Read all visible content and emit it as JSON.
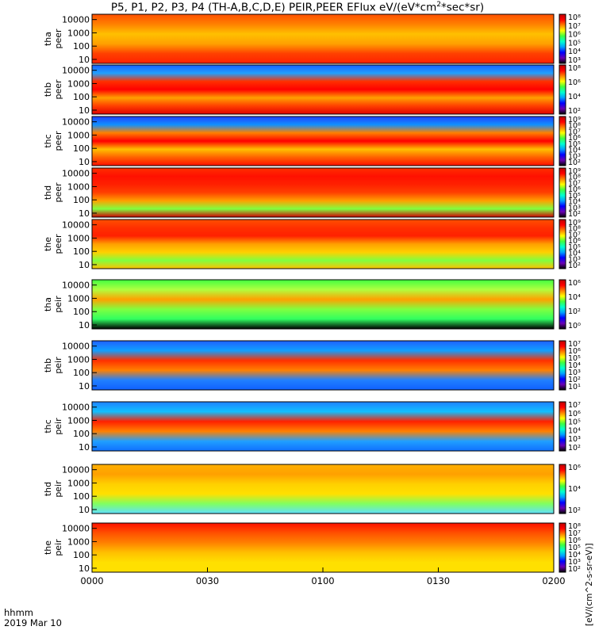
{
  "title": "P5, P1, P2, P3, P4 (TH-A,B,C,D,E) PEIR,PEER EFlux eV/(eV*cm^2*sec*sr)",
  "units_label": "[eV/(cm^2-s-sr-eV)]",
  "footer": {
    "label": "hhmm",
    "date": "2019 Mar 10"
  },
  "chart_data": {
    "type": "heatmap",
    "x_ticks": [
      "0000",
      "0030",
      "0100",
      "0130",
      "0200"
    ],
    "x_range_minutes": [
      0,
      120
    ],
    "y_scale": "log",
    "y_ticks": [
      "10",
      "100",
      "1000",
      "10000"
    ],
    "colormap": [
      "#000000",
      "#6a00b4",
      "#0000ff",
      "#00a0ff",
      "#00ffd0",
      "#40ff40",
      "#ffff00",
      "#ff8000",
      "#ff0000",
      "#c00000"
    ],
    "panels": [
      {
        "probe": "tha",
        "species": "peer",
        "ylabel": [
          "tha",
          "peer"
        ],
        "cbar_ticks": [
          "10⁸",
          "10⁷",
          "10⁶",
          "10⁵",
          "10⁴",
          "10³"
        ]
      },
      {
        "probe": "thb",
        "species": "peer",
        "ylabel": [
          "thb",
          "peer"
        ],
        "cbar_ticks": [
          "10⁸",
          "10⁶",
          "10⁴",
          "10²"
        ]
      },
      {
        "probe": "thc",
        "species": "peer",
        "ylabel": [
          "thc",
          "peer"
        ],
        "cbar_ticks": [
          "10⁹",
          "10⁸",
          "10⁷",
          "10⁶",
          "10⁵",
          "10⁴",
          "10³",
          "10²"
        ]
      },
      {
        "probe": "thd",
        "species": "peer",
        "ylabel": [
          "thd",
          "peer"
        ],
        "cbar_ticks": [
          "10⁹",
          "10⁸",
          "10⁷",
          "10⁶",
          "10⁵",
          "10⁴",
          "10³",
          "10²"
        ]
      },
      {
        "probe": "the",
        "species": "peer",
        "ylabel": [
          "the",
          "peer"
        ],
        "cbar_ticks": [
          "10⁹",
          "10⁸",
          "10⁷",
          "10⁶",
          "10⁵",
          "10⁴",
          "10³",
          "10²"
        ]
      },
      {
        "probe": "tha",
        "species": "peir",
        "ylabel": [
          "tha",
          "peir"
        ],
        "cbar_ticks": [
          "10⁶",
          "10⁴",
          "10²",
          "10⁰"
        ]
      },
      {
        "probe": "thb",
        "species": "peir",
        "ylabel": [
          "thb",
          "peir"
        ],
        "cbar_ticks": [
          "10⁷",
          "10⁶",
          "10⁵",
          "10⁴",
          "10³",
          "10²",
          "10¹"
        ]
      },
      {
        "probe": "thc",
        "species": "peir",
        "ylabel": [
          "thc",
          "peir"
        ],
        "cbar_ticks": [
          "10⁷",
          "10⁶",
          "10⁵",
          "10⁴",
          "10³",
          "10²"
        ]
      },
      {
        "probe": "thd",
        "species": "peir",
        "ylabel": [
          "thd",
          "peir"
        ],
        "cbar_ticks": [
          "10⁶",
          "10⁴",
          "10²"
        ]
      },
      {
        "probe": "the",
        "species": "peir",
        "ylabel": [
          "the",
          "peir"
        ],
        "cbar_ticks": [
          "10⁸",
          "10⁷",
          "10⁶",
          "10⁵",
          "10⁴",
          "10³",
          "10²"
        ]
      }
    ]
  }
}
